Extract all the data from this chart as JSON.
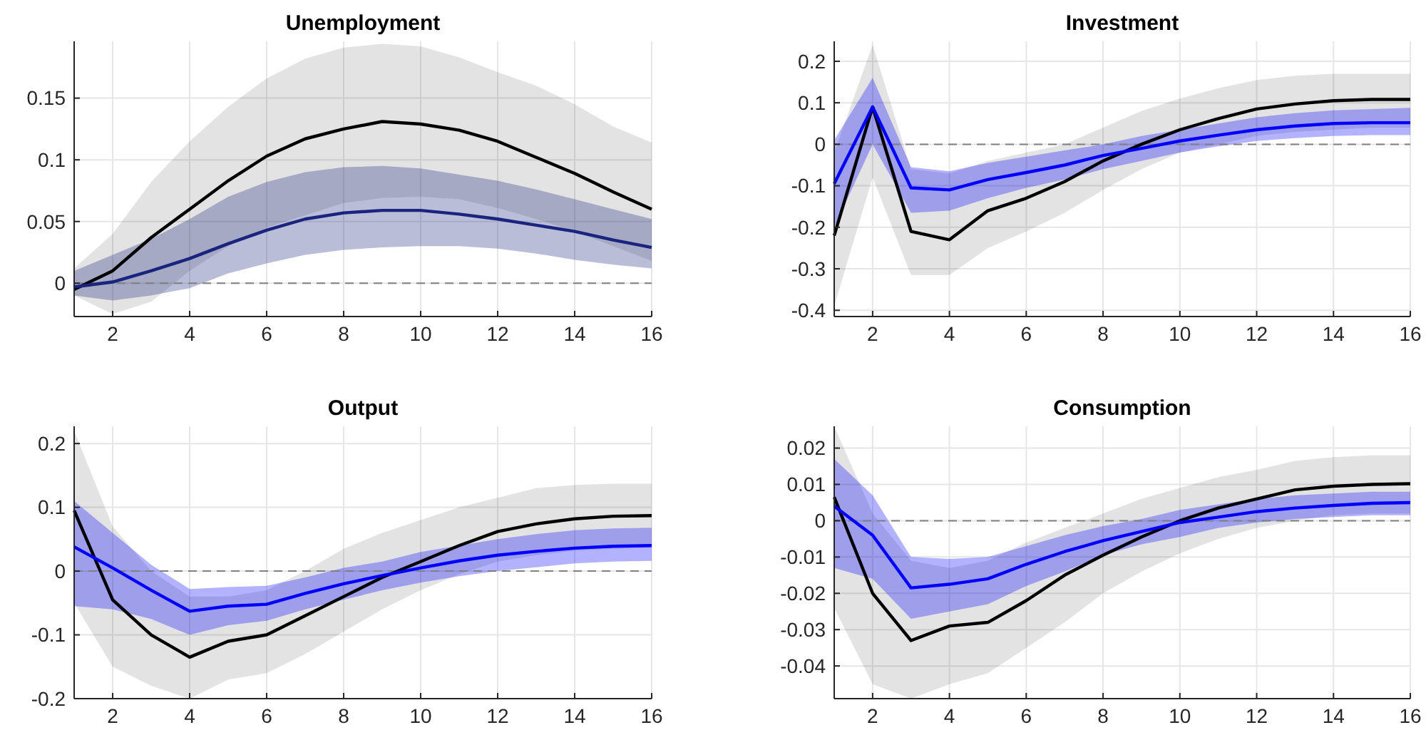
{
  "chart_data": [
    {
      "type": "line",
      "title": "Unemployment",
      "x": [
        1,
        2,
        3,
        4,
        5,
        6,
        7,
        8,
        9,
        10,
        11,
        12,
        13,
        14,
        15,
        16
      ],
      "xlim": [
        1,
        16
      ],
      "xticks": [
        2,
        4,
        6,
        8,
        10,
        12,
        14,
        16
      ],
      "ylim": [
        -0.027,
        0.196
      ],
      "yticks": [
        0,
        0.05,
        0.1,
        0.15
      ],
      "grid": true,
      "ref_lines": [
        {
          "axis": "y",
          "value": 0,
          "color": "#808080",
          "line_style": "dashed"
        }
      ],
      "series": [
        {
          "color": "#000000",
          "values": [
            -0.005,
            0.01,
            0.037,
            0.06,
            0.083,
            0.103,
            0.117,
            0.125,
            0.131,
            0.129,
            0.124,
            0.115,
            0.102,
            0.089,
            0.074,
            0.06
          ],
          "lower": [
            -0.01,
            -0.025,
            -0.015,
            0.01,
            0.03,
            0.045,
            0.055,
            0.065,
            0.069,
            0.07,
            0.068,
            0.061,
            0.052,
            0.042,
            0.03,
            0.018
          ],
          "upper": [
            0.012,
            0.04,
            0.082,
            0.115,
            0.143,
            0.166,
            0.182,
            0.191,
            0.194,
            0.192,
            0.183,
            0.171,
            0.16,
            0.145,
            0.127,
            0.114
          ]
        },
        {
          "color": "#1a237e",
          "values": [
            -0.003,
            0.001,
            0.01,
            0.02,
            0.032,
            0.043,
            0.052,
            0.057,
            0.059,
            0.059,
            0.056,
            0.052,
            0.047,
            0.042,
            0.035,
            0.029
          ],
          "lower": [
            -0.01,
            -0.014,
            -0.01,
            -0.004,
            0.008,
            0.016,
            0.023,
            0.027,
            0.029,
            0.03,
            0.03,
            0.028,
            0.024,
            0.019,
            0.015,
            0.012
          ],
          "upper": [
            0.01,
            0.023,
            0.036,
            0.052,
            0.07,
            0.082,
            0.09,
            0.094,
            0.095,
            0.093,
            0.088,
            0.083,
            0.076,
            0.068,
            0.06,
            0.052
          ]
        }
      ]
    },
    {
      "type": "line",
      "title": "Investment",
      "x": [
        1,
        2,
        3,
        4,
        5,
        6,
        7,
        8,
        9,
        10,
        11,
        12,
        13,
        14,
        15,
        16
      ],
      "xlim": [
        1,
        16
      ],
      "xticks": [
        2,
        4,
        6,
        8,
        10,
        12,
        14,
        16
      ],
      "ylim": [
        -0.415,
        0.248
      ],
      "yticks": [
        -0.4,
        -0.3,
        -0.2,
        -0.1,
        0,
        0.1,
        0.2
      ],
      "grid": true,
      "ref_lines": [
        {
          "axis": "y",
          "value": 0,
          "color": "#808080",
          "line_style": "dashed"
        }
      ],
      "series": [
        {
          "color": "#000000",
          "values": [
            -0.22,
            0.09,
            -0.21,
            -0.23,
            -0.16,
            -0.13,
            -0.09,
            -0.04,
            0,
            0.035,
            0.062,
            0.085,
            0.097,
            0.105,
            0.108,
            0.108
          ],
          "lower": [
            -0.39,
            -0.08,
            -0.315,
            -0.315,
            -0.25,
            -0.21,
            -0.165,
            -0.11,
            -0.06,
            -0.02,
            0,
            0.02,
            0.03,
            0.035,
            0.04,
            0.04
          ],
          "upper": [
            -0.02,
            0.24,
            -0.06,
            -0.07,
            -0.04,
            -0.02,
            0,
            0.04,
            0.08,
            0.11,
            0.135,
            0.155,
            0.165,
            0.17,
            0.17,
            0.17
          ]
        },
        {
          "color": "#0000ff",
          "values": [
            -0.095,
            0.09,
            -0.105,
            -0.11,
            -0.085,
            -0.068,
            -0.05,
            -0.027,
            -0.01,
            0.008,
            0.022,
            0.035,
            0.044,
            0.05,
            0.052,
            0.052
          ],
          "lower": [
            -0.2,
            0,
            -0.165,
            -0.16,
            -0.13,
            -0.105,
            -0.085,
            -0.06,
            -0.04,
            -0.02,
            -0.005,
            0.008,
            0.015,
            0.02,
            0.022,
            0.022
          ],
          "upper": [
            0.01,
            0.16,
            -0.055,
            -0.065,
            -0.045,
            -0.03,
            -0.015,
            0,
            0.02,
            0.035,
            0.05,
            0.065,
            0.075,
            0.082,
            0.085,
            0.088
          ]
        }
      ]
    },
    {
      "type": "line",
      "title": "Output",
      "x": [
        1,
        2,
        3,
        4,
        5,
        6,
        7,
        8,
        9,
        10,
        11,
        12,
        13,
        14,
        15,
        16
      ],
      "xlim": [
        1,
        16
      ],
      "xticks": [
        2,
        4,
        6,
        8,
        10,
        12,
        14,
        16
      ],
      "ylim": [
        -0.2,
        0.227
      ],
      "yticks": [
        -0.2,
        -0.1,
        0,
        0.1,
        0.2
      ],
      "grid": true,
      "ref_lines": [
        {
          "axis": "y",
          "value": 0,
          "color": "#808080",
          "line_style": "dashed"
        }
      ],
      "series": [
        {
          "color": "#000000",
          "values": [
            0.095,
            -0.045,
            -0.1,
            -0.135,
            -0.11,
            -0.1,
            -0.07,
            -0.04,
            -0.01,
            0.015,
            0.04,
            0.062,
            0.074,
            0.082,
            0.086,
            0.087
          ],
          "lower": [
            -0.05,
            -0.15,
            -0.18,
            -0.2,
            -0.17,
            -0.16,
            -0.13,
            -0.095,
            -0.06,
            -0.03,
            -0.005,
            0.015,
            0.025,
            0.032,
            0.035,
            0.037
          ],
          "upper": [
            0.22,
            0.07,
            0,
            -0.04,
            -0.04,
            -0.03,
            0,
            0.035,
            0.06,
            0.08,
            0.1,
            0.115,
            0.13,
            0.135,
            0.137,
            0.137
          ]
        },
        {
          "color": "#0000ff",
          "values": [
            0.038,
            0.005,
            -0.03,
            -0.063,
            -0.055,
            -0.052,
            -0.035,
            -0.02,
            -0.007,
            0.005,
            0.016,
            0.025,
            0.031,
            0.036,
            0.039,
            0.04
          ],
          "lower": [
            -0.055,
            -0.06,
            -0.075,
            -0.1,
            -0.085,
            -0.078,
            -0.06,
            -0.045,
            -0.03,
            -0.018,
            -0.008,
            0,
            0.006,
            0.012,
            0.015,
            0.016
          ],
          "upper": [
            0.11,
            0.06,
            0.01,
            -0.028,
            -0.025,
            -0.023,
            -0.01,
            0.005,
            0.015,
            0.03,
            0.04,
            0.05,
            0.058,
            0.064,
            0.067,
            0.068
          ]
        }
      ]
    },
    {
      "type": "line",
      "title": "Consumption",
      "x": [
        1,
        2,
        3,
        4,
        5,
        6,
        7,
        8,
        9,
        10,
        11,
        12,
        13,
        14,
        15,
        16
      ],
      "xlim": [
        1,
        16
      ],
      "xticks": [
        2,
        4,
        6,
        8,
        10,
        12,
        14,
        16
      ],
      "ylim": [
        -0.049,
        0.026
      ],
      "yticks": [
        -0.04,
        -0.03,
        -0.02,
        -0.01,
        0,
        0.01,
        0.02
      ],
      "grid": true,
      "ref_lines": [
        {
          "axis": "y",
          "value": 0,
          "color": "#808080",
          "line_style": "dashed"
        }
      ],
      "series": [
        {
          "color": "#000000",
          "values": [
            0.0065,
            -0.02,
            -0.033,
            -0.029,
            -0.028,
            -0.022,
            -0.015,
            -0.0095,
            -0.0045,
            0,
            0.0035,
            0.006,
            0.0085,
            0.0095,
            0.01,
            0.0102
          ],
          "lower": [
            -0.024,
            -0.045,
            -0.049,
            -0.045,
            -0.042,
            -0.035,
            -0.028,
            -0.02,
            -0.014,
            -0.009,
            -0.005,
            -0.002,
            0,
            0.0015,
            0.002,
            0.002
          ],
          "upper": [
            0.026,
            0.002,
            -0.011,
            -0.013,
            -0.011,
            -0.006,
            -0.002,
            0.002,
            0.006,
            0.009,
            0.012,
            0.014,
            0.0165,
            0.0175,
            0.018,
            0.018
          ]
        },
        {
          "color": "#0000ff",
          "values": [
            0.004,
            -0.004,
            -0.0185,
            -0.0175,
            -0.016,
            -0.012,
            -0.0085,
            -0.0055,
            -0.003,
            -0.0005,
            0.001,
            0.0025,
            0.0035,
            0.0042,
            0.0048,
            0.005
          ],
          "lower": [
            -0.013,
            -0.016,
            -0.027,
            -0.025,
            -0.023,
            -0.018,
            -0.014,
            -0.0095,
            -0.0065,
            -0.0045,
            -0.002,
            -0.0005,
            0.0005,
            0.001,
            0.0015,
            0.0015
          ],
          "upper": [
            0.017,
            0.007,
            -0.01,
            -0.0105,
            -0.01,
            -0.007,
            -0.004,
            -0.0015,
            0.0005,
            0.003,
            0.0045,
            0.006,
            0.007,
            0.0075,
            0.008,
            0.008
          ]
        }
      ]
    }
  ]
}
